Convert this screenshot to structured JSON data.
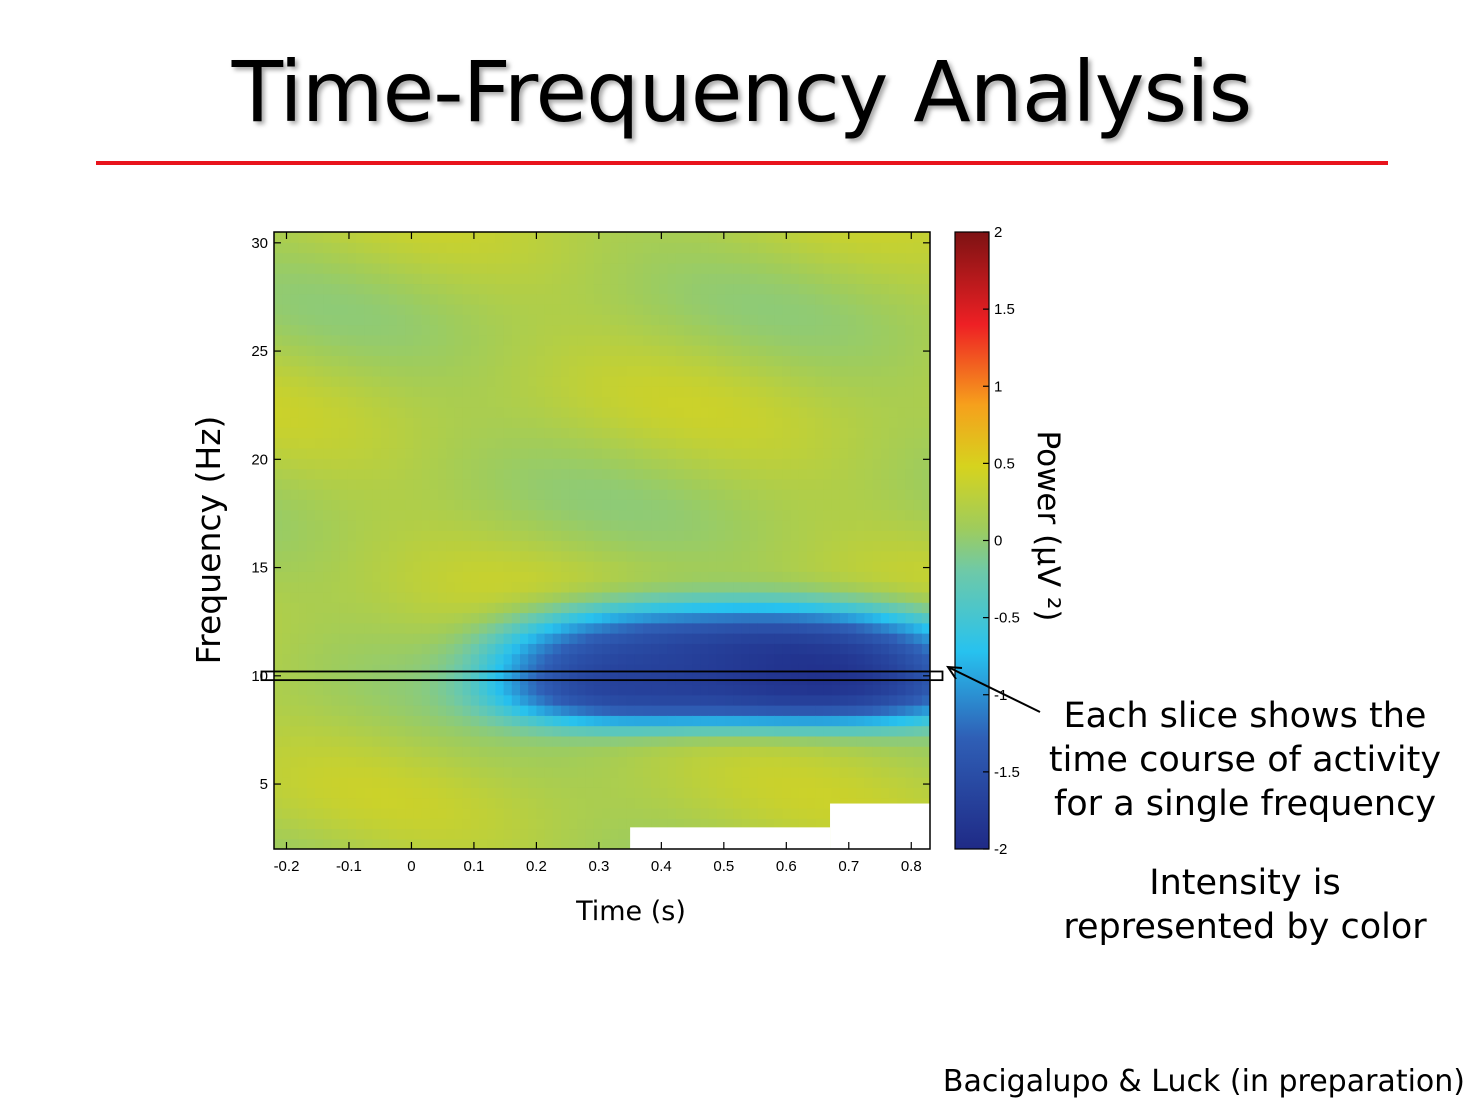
{
  "slide": {
    "title": "Time-Frequency Analysis",
    "annotation_slice": "Each slice shows the time course of activity for a single frequency",
    "annotation_intensity": "Intensity is represented by color",
    "citation": "Bacigalupo & Luck (in preparation)",
    "accent_color": "#e8131c"
  },
  "chart_data": {
    "type": "heatmap",
    "xlabel": "Time (s)",
    "ylabel": "Frequency (Hz)",
    "colorbar_label": "Power (µV ²)",
    "xlim": [
      -0.22,
      0.83
    ],
    "ylim": [
      2,
      30.5
    ],
    "x_ticks": [
      -0.2,
      -0.1,
      0,
      0.1,
      0.2,
      0.3,
      0.4,
      0.5,
      0.6,
      0.7,
      0.8
    ],
    "x_tick_labels": [
      "-0.2",
      "-0.1",
      "0",
      "0.1",
      "0.2",
      "0.3",
      "0.4",
      "0.5",
      "0.6",
      "0.7",
      "0.8"
    ],
    "y_ticks": [
      5,
      10,
      15,
      20,
      25,
      30
    ],
    "y_tick_labels": [
      "5",
      "10",
      "15",
      "20",
      "25",
      "30"
    ],
    "clim": [
      -2,
      2
    ],
    "colorbar_ticks": [
      2,
      1.5,
      1,
      0.5,
      0,
      -0.5,
      -1,
      -1.5,
      -2
    ],
    "colorbar_tick_labels": [
      "2",
      "1.5",
      "1",
      "0.5",
      "0",
      "-0.5",
      "-1",
      "-1.5",
      "-2"
    ],
    "colormap": "jet",
    "background_power": 0.2,
    "desync": {
      "center_time": 0.47,
      "center_freq": 10.2,
      "peak_power": -1.95,
      "time_start": 0.12,
      "time_end": 0.83,
      "freq_low": 7.5,
      "freq_high": 13.5
    },
    "highlighted_frequency": 10,
    "highlight_time_range": [
      -0.24,
      0.85
    ],
    "masked_regions": [
      {
        "time_range": [
          0.35,
          0.67
        ],
        "freq_range": [
          2,
          3.0
        ]
      },
      {
        "time_range": [
          0.67,
          0.83
        ],
        "freq_range": [
          2,
          4.1
        ]
      }
    ]
  }
}
